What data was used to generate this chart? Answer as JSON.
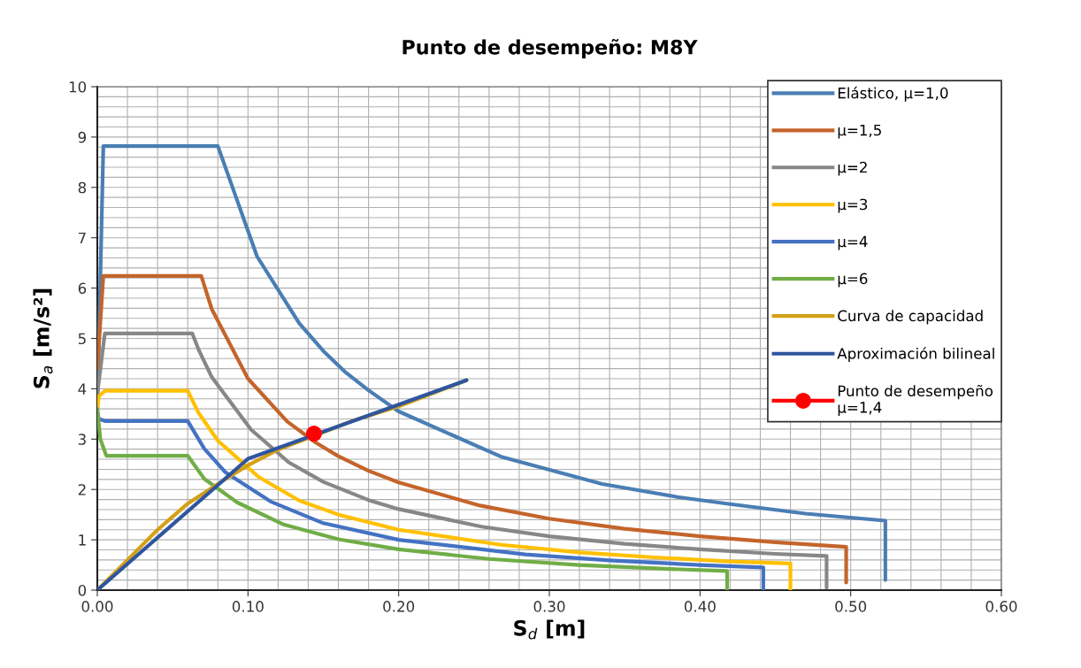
{
  "chart_data": {
    "type": "line",
    "title": "Punto de desempeño: M8Y",
    "xlabel": "S$_{d}$ [m]",
    "ylabel": "S$_{a}$ [m/s²]",
    "xlim": [
      0,
      0.6
    ],
    "ylim": [
      0,
      10
    ],
    "xticks": [
      {
        "value": 0,
        "label": "0.00"
      },
      {
        "value": 0.02,
        "label": null
      },
      {
        "value": 0.04,
        "label": null
      },
      {
        "value": 0.06,
        "label": null
      },
      {
        "value": 0.08,
        "label": null
      },
      {
        "value": 0.1,
        "label": "0.10"
      },
      {
        "value": 0.12,
        "label": null
      },
      {
        "value": 0.14,
        "label": null
      },
      {
        "value": 0.16,
        "label": null
      },
      {
        "value": 0.18,
        "label": null
      },
      {
        "value": 0.2,
        "label": "0.20"
      },
      {
        "value": 0.22,
        "label": null
      },
      {
        "value": 0.24,
        "label": null
      },
      {
        "value": 0.26,
        "label": null
      },
      {
        "value": 0.28,
        "label": null
      },
      {
        "value": 0.3,
        "label": "0.30"
      },
      {
        "value": 0.32,
        "label": null
      },
      {
        "value": 0.34,
        "label": null
      },
      {
        "value": 0.36,
        "label": null
      },
      {
        "value": 0.38,
        "label": null
      },
      {
        "value": 0.4,
        "label": "0.40"
      },
      {
        "value": 0.42,
        "label": null
      },
      {
        "value": 0.44,
        "label": null
      },
      {
        "value": 0.46,
        "label": null
      },
      {
        "value": 0.48,
        "label": null
      },
      {
        "value": 0.5,
        "label": "0.50"
      },
      {
        "value": 0.52,
        "label": null
      },
      {
        "value": 0.54,
        "label": null
      },
      {
        "value": 0.56,
        "label": null
      },
      {
        "value": 0.58,
        "label": null
      },
      {
        "value": 0.6,
        "label": "0.60"
      }
    ],
    "yticks": [
      0,
      {
        "value": 0.2,
        "label": null
      },
      {
        "value": 0.4,
        "label": null
      },
      {
        "value": 0.6,
        "label": null
      },
      {
        "value": 0.8,
        "label": null
      },
      1,
      {
        "value": 1.2,
        "label": null
      },
      {
        "value": 1.4,
        "label": null
      },
      {
        "value": 1.6,
        "label": null
      },
      {
        "value": 1.8,
        "label": null
      },
      2,
      {
        "value": 2.2,
        "label": null
      },
      {
        "value": 2.4,
        "label": null
      },
      {
        "value": 2.6,
        "label": null
      },
      {
        "value": 2.8,
        "label": null
      },
      3,
      {
        "value": 3.2,
        "label": null
      },
      {
        "value": 3.4,
        "label": null
      },
      {
        "value": 3.6,
        "label": null
      },
      {
        "value": 3.8,
        "label": null
      },
      4,
      {
        "value": 4.2,
        "label": null
      },
      {
        "value": 4.4,
        "label": null
      },
      {
        "value": 4.6,
        "label": null
      },
      {
        "value": 4.8,
        "label": null
      },
      5,
      {
        "value": 5.2,
        "label": null
      },
      {
        "value": 5.4,
        "label": null
      },
      {
        "value": 5.6,
        "label": null
      },
      {
        "value": 5.8,
        "label": null
      },
      6,
      {
        "value": 6.2,
        "label": null
      },
      {
        "value": 6.4,
        "label": null
      },
      {
        "value": 6.6,
        "label": null
      },
      {
        "value": 6.8,
        "label": null
      },
      7,
      {
        "value": 7.2,
        "label": null
      },
      {
        "value": 7.4,
        "label": null
      },
      {
        "value": 7.6,
        "label": null
      },
      {
        "value": 7.8,
        "label": null
      },
      8,
      {
        "value": 8.2,
        "label": null
      },
      {
        "value": 8.4,
        "label": null
      },
      {
        "value": 8.6,
        "label": null
      },
      {
        "value": 8.8,
        "label": null
      },
      9,
      {
        "value": 9.2,
        "label": null
      },
      {
        "value": 9.4,
        "label": null
      },
      {
        "value": 9.6,
        "label": null
      },
      {
        "value": 9.8,
        "label": null
      },
      10
    ],
    "grid": true,
    "legend": "top right",
    "marker": "none",
    "line_style": "solid",
    "series": [
      {
        "name": "Elástico, μ=1,0",
        "color": "#4a7eb4",
        "x": [
          0,
          0.004,
          0.08,
          0.106,
          0.134,
          0.15,
          0.165,
          0.18,
          0.2,
          0.268,
          0.335,
          0.385,
          0.42,
          0.47,
          0.523,
          0.523
        ],
        "values": [
          3.53,
          8.82,
          8.82,
          6.63,
          5.3,
          4.75,
          4.32,
          3.97,
          3.55,
          2.65,
          2.11,
          1.85,
          1.71,
          1.52,
          1.38,
          0.2
        ]
      },
      {
        "name": "μ=1,5",
        "color": "#c4642b",
        "x": [
          0,
          0.004,
          0.069,
          0.076,
          0.1,
          0.126,
          0.145,
          0.16,
          0.18,
          0.2,
          0.254,
          0.3,
          0.35,
          0.4,
          0.45,
          0.497,
          0.497
        ],
        "values": [
          4.39,
          6.24,
          6.24,
          5.58,
          4.2,
          3.35,
          2.93,
          2.66,
          2.37,
          2.14,
          1.68,
          1.42,
          1.22,
          1.07,
          0.95,
          0.86,
          0.15
        ]
      },
      {
        "name": "μ=2",
        "color": "#878787",
        "x": [
          0,
          0.005,
          0.063,
          0.0675,
          0.076,
          0.102,
          0.127,
          0.15,
          0.18,
          0.2,
          0.255,
          0.3,
          0.35,
          0.4,
          0.45,
          0.484,
          0.484
        ],
        "values": [
          3.9,
          5.1,
          5.1,
          4.76,
          4.23,
          3.19,
          2.54,
          2.15,
          1.79,
          1.61,
          1.26,
          1.07,
          0.92,
          0.81,
          0.72,
          0.68,
          0.05
        ]
      },
      {
        "name": "μ=3",
        "color": "#ffc000",
        "x": [
          0,
          0.001,
          0.005,
          0.06,
          0.067,
          0.08,
          0.107,
          0.134,
          0.16,
          0.2,
          0.268,
          0.32,
          0.37,
          0.42,
          0.46,
          0.46
        ],
        "values": [
          3.6,
          3.85,
          3.96,
          3.96,
          3.53,
          2.97,
          2.25,
          1.78,
          1.5,
          1.2,
          0.9,
          0.75,
          0.65,
          0.57,
          0.53,
          0.02
        ]
      },
      {
        "name": "μ=4",
        "color": "#4472c4",
        "x": [
          0,
          0.001,
          0.005,
          0.06,
          0.071,
          0.085,
          0.115,
          0.15,
          0.2,
          0.284,
          0.34,
          0.4,
          0.442,
          0.442
        ],
        "values": [
          3.55,
          3.4,
          3.36,
          3.36,
          2.81,
          2.34,
          1.76,
          1.33,
          1.0,
          0.71,
          0.59,
          0.5,
          0.45,
          0.01
        ]
      },
      {
        "name": "μ=6",
        "color": "#70ad47",
        "x": [
          0,
          0.002,
          0.006,
          0.06,
          0.071,
          0.093,
          0.124,
          0.16,
          0.2,
          0.26,
          0.32,
          0.38,
          0.418,
          0.418
        ],
        "values": [
          3.6,
          3.0,
          2.67,
          2.67,
          2.21,
          1.74,
          1.3,
          1.01,
          0.81,
          0.62,
          0.5,
          0.42,
          0.38,
          0.01
        ]
      },
      {
        "name": "Curva de capacidad",
        "color": "#d4a017",
        "x": [
          0,
          0.02,
          0.04,
          0.06,
          0.08,
          0.1,
          0.12,
          0.17,
          0.2,
          0.245
        ],
        "values": [
          0,
          0.6,
          1.2,
          1.72,
          2.11,
          2.48,
          2.79,
          3.37,
          3.65,
          4.17
        ]
      },
      {
        "name": "Aproximación bilineal",
        "color": "#2f559f",
        "x": [
          0,
          0.1,
          0.245
        ],
        "values": [
          0,
          2.61,
          4.17
        ]
      },
      {
        "name": "Punto de desempeño\nμ=1,4",
        "color": "#ff0000",
        "marker": "circle",
        "x": [
          0.1438
        ],
        "values": [
          3.11
        ]
      }
    ]
  }
}
